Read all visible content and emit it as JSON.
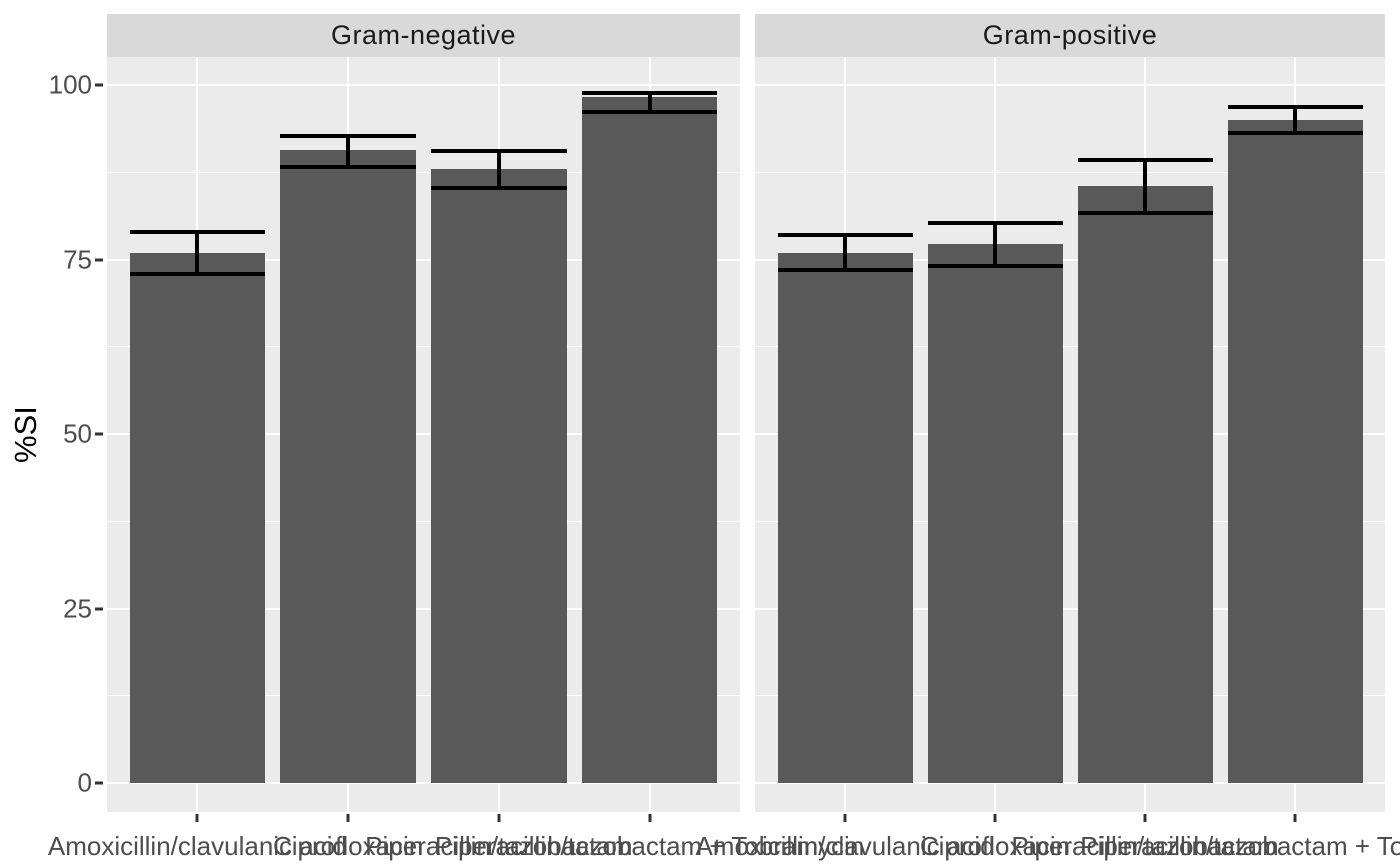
{
  "chart_data": {
    "type": "bar",
    "title": "",
    "xlabel": "",
    "ylabel": "%SI",
    "categories": [
      "Amoxicillin/clavulanic acid",
      "Ciprofloxacin",
      "Piperacillin/tazobactam",
      "Piperacillin/tazobactam + Tobramycin"
    ],
    "facets": [
      {
        "label": "Gram-negative",
        "series_name": "%SI",
        "values": [
          76.0,
          90.7,
          88.0,
          98.3
        ],
        "error_low": [
          72.9,
          88.3,
          85.3,
          96.1
        ],
        "error_high": [
          79.0,
          92.7,
          90.6,
          98.8
        ]
      },
      {
        "label": "Gram-positive",
        "series_name": "%SI",
        "values": [
          76.0,
          77.2,
          85.5,
          95.0
        ],
        "error_low": [
          73.5,
          74.1,
          81.6,
          93.1
        ],
        "error_high": [
          78.5,
          80.3,
          89.3,
          96.9
        ]
      }
    ],
    "y_ticks": [
      0,
      25,
      50,
      75,
      100
    ],
    "y_minor_ticks": [
      12.5,
      37.5,
      62.5,
      87.5
    ],
    "ylim": [
      0,
      100
    ],
    "grid": true,
    "legend": "none",
    "error_bar_style": "caps-full-bar-width",
    "colors": {
      "bar_fill": "#595959",
      "error_bar": "#000000",
      "panel_bg": "#EBEBEB",
      "strip_bg": "#D9D9D9",
      "grid_line": "#FFFFFF",
      "axis_text": "#4D4D4D",
      "strip_text": "#1A1A1A",
      "axis_title": "#000000",
      "tick_mark": "#333333"
    }
  }
}
